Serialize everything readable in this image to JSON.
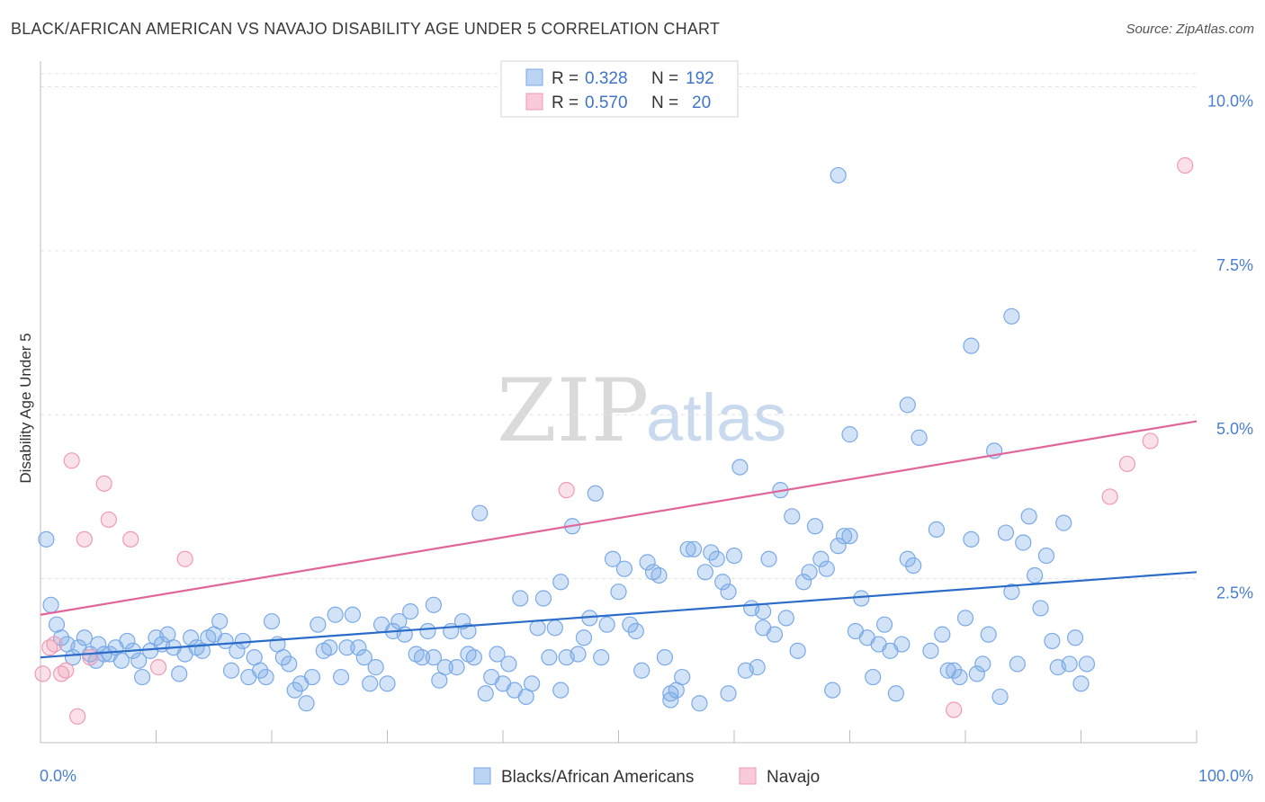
{
  "title": "BLACK/AFRICAN AMERICAN VS NAVAJO DISABILITY AGE UNDER 5 CORRELATION CHART",
  "source": "Source: ZipAtlas.com",
  "watermark": {
    "zip": "ZIP",
    "atlas": "atlas"
  },
  "colors": {
    "blue": "#7aaae6",
    "blue_line": "#2b6cc9",
    "pink": "#f09ab5",
    "pink_line": "#e0669a",
    "tick": "#4a7fcf"
  },
  "legend_top": {
    "rows": [
      {
        "r_label": "R =",
        "r_value": "0.328",
        "n_label": "N =",
        "n_value": "192",
        "color": "blue"
      },
      {
        "r_label": "R =",
        "r_value": "0.570",
        "n_label": "N =",
        "n_value": "20",
        "color": "pink"
      }
    ]
  },
  "legend_bottom": [
    {
      "label": "Blacks/African Americans",
      "color": "blue"
    },
    {
      "label": "Navajo",
      "color": "pink"
    }
  ],
  "chart_data": {
    "type": "scatter",
    "title": "BLACK/AFRICAN AMERICAN VS NAVAJO DISABILITY AGE UNDER 5 CORRELATION CHART",
    "xlabel": "",
    "ylabel": "Disability Age Under 5",
    "xlim": [
      0,
      100
    ],
    "ylim": [
      0,
      10.5
    ],
    "x_tick_labels": [
      "0.0%",
      "100.0%"
    ],
    "y_ticks": [
      2.5,
      5.0,
      7.5,
      10.0
    ],
    "y_tick_labels": [
      "2.5%",
      "5.0%",
      "7.5%",
      "10.0%"
    ],
    "grid": "horizontal dashed",
    "series": [
      {
        "name": "Blacks/African Americans",
        "color": "blue",
        "trend": {
          "x": [
            0,
            100
          ],
          "y": [
            1.3,
            2.6
          ]
        },
        "points": [
          [
            0.5,
            3.1
          ],
          [
            0.9,
            2.1
          ],
          [
            1.4,
            1.8
          ],
          [
            1.8,
            1.6
          ],
          [
            2.3,
            1.5
          ],
          [
            2.8,
            1.3
          ],
          [
            3.3,
            1.45
          ],
          [
            3.8,
            1.6
          ],
          [
            4.3,
            1.35
          ],
          [
            4.8,
            1.25
          ],
          [
            5.0,
            1.5
          ],
          [
            5.5,
            1.35
          ],
          [
            6.0,
            1.35
          ],
          [
            6.5,
            1.45
          ],
          [
            7.0,
            1.25
          ],
          [
            7.5,
            1.55
          ],
          [
            8.0,
            1.4
          ],
          [
            8.5,
            1.25
          ],
          [
            8.8,
            1.0
          ],
          [
            9.5,
            1.4
          ],
          [
            10.0,
            1.6
          ],
          [
            10.5,
            1.5
          ],
          [
            11.0,
            1.65
          ],
          [
            11.5,
            1.45
          ],
          [
            12.0,
            1.05
          ],
          [
            12.5,
            1.35
          ],
          [
            13.0,
            1.6
          ],
          [
            13.5,
            1.45
          ],
          [
            14.0,
            1.4
          ],
          [
            14.5,
            1.6
          ],
          [
            15.0,
            1.65
          ],
          [
            15.5,
            1.85
          ],
          [
            16.0,
            1.55
          ],
          [
            16.5,
            1.1
          ],
          [
            17.0,
            1.4
          ],
          [
            17.5,
            1.55
          ],
          [
            18.0,
            1.0
          ],
          [
            18.5,
            1.3
          ],
          [
            19.0,
            1.1
          ],
          [
            19.5,
            1.0
          ],
          [
            20.0,
            1.85
          ],
          [
            20.5,
            1.5
          ],
          [
            21.0,
            1.3
          ],
          [
            21.5,
            1.2
          ],
          [
            22.0,
            0.8
          ],
          [
            22.5,
            0.9
          ],
          [
            23.0,
            0.6
          ],
          [
            23.5,
            1.0
          ],
          [
            24.0,
            1.8
          ],
          [
            24.5,
            1.4
          ],
          [
            25.0,
            1.45
          ],
          [
            25.5,
            1.95
          ],
          [
            26.0,
            1.0
          ],
          [
            26.5,
            1.45
          ],
          [
            27.0,
            1.95
          ],
          [
            27.5,
            1.45
          ],
          [
            28.0,
            1.3
          ],
          [
            28.5,
            0.9
          ],
          [
            29.0,
            1.15
          ],
          [
            29.5,
            1.8
          ],
          [
            30.0,
            0.9
          ],
          [
            30.5,
            1.7
          ],
          [
            31.0,
            1.85
          ],
          [
            31.5,
            1.65
          ],
          [
            32.0,
            2.0
          ],
          [
            32.5,
            1.35
          ],
          [
            33.0,
            1.3
          ],
          [
            33.5,
            1.7
          ],
          [
            34.0,
            2.1
          ],
          [
            34.5,
            0.95
          ],
          [
            35.0,
            1.15
          ],
          [
            35.5,
            1.7
          ],
          [
            36.0,
            1.15
          ],
          [
            36.5,
            1.85
          ],
          [
            37.0,
            1.35
          ],
          [
            37.5,
            1.3
          ],
          [
            38.0,
            3.5
          ],
          [
            38.5,
            0.75
          ],
          [
            39.0,
            1.0
          ],
          [
            39.5,
            1.35
          ],
          [
            40.0,
            0.9
          ],
          [
            40.5,
            1.2
          ],
          [
            41.0,
            0.8
          ],
          [
            41.5,
            2.2
          ],
          [
            42.0,
            0.7
          ],
          [
            42.5,
            0.9
          ],
          [
            43.0,
            1.75
          ],
          [
            43.5,
            2.2
          ],
          [
            44.0,
            1.3
          ],
          [
            44.5,
            1.75
          ],
          [
            45.0,
            0.8
          ],
          [
            45.5,
            1.3
          ],
          [
            46.0,
            3.3
          ],
          [
            46.5,
            1.35
          ],
          [
            47.0,
            1.6
          ],
          [
            47.5,
            1.9
          ],
          [
            48.0,
            3.8
          ],
          [
            48.5,
            1.3
          ],
          [
            49.0,
            1.8
          ],
          [
            49.5,
            2.8
          ],
          [
            50.0,
            2.3
          ],
          [
            50.5,
            2.65
          ],
          [
            51.0,
            1.8
          ],
          [
            51.5,
            1.7
          ],
          [
            52.0,
            1.1
          ],
          [
            52.5,
            2.75
          ],
          [
            53.0,
            2.6
          ],
          [
            53.5,
            2.55
          ],
          [
            54.0,
            1.3
          ],
          [
            54.5,
            0.65
          ],
          [
            55.0,
            0.8
          ],
          [
            55.5,
            1.0
          ],
          [
            56.0,
            2.95
          ],
          [
            56.5,
            2.95
          ],
          [
            57.0,
            0.6
          ],
          [
            57.5,
            2.6
          ],
          [
            58.0,
            2.9
          ],
          [
            58.5,
            2.8
          ],
          [
            59.0,
            2.45
          ],
          [
            59.5,
            0.75
          ],
          [
            60.0,
            2.85
          ],
          [
            60.5,
            4.2
          ],
          [
            61.0,
            1.1
          ],
          [
            61.5,
            2.05
          ],
          [
            62.0,
            1.15
          ],
          [
            62.5,
            1.75
          ],
          [
            63.0,
            2.8
          ],
          [
            63.5,
            1.65
          ],
          [
            64.0,
            3.85
          ],
          [
            64.5,
            1.9
          ],
          [
            65.0,
            3.45
          ],
          [
            65.5,
            1.4
          ],
          [
            66.0,
            2.45
          ],
          [
            66.5,
            2.6
          ],
          [
            67.0,
            3.3
          ],
          [
            67.5,
            2.8
          ],
          [
            68.0,
            2.65
          ],
          [
            68.5,
            0.8
          ],
          [
            69.0,
            3.0
          ],
          [
            69.5,
            3.15
          ],
          [
            70.0,
            3.15
          ],
          [
            70.5,
            1.7
          ],
          [
            71.0,
            2.2
          ],
          [
            71.5,
            1.6
          ],
          [
            72.0,
            1.0
          ],
          [
            72.5,
            1.5
          ],
          [
            73.0,
            1.8
          ],
          [
            73.5,
            1.4
          ],
          [
            74.0,
            0.75
          ],
          [
            74.5,
            1.5
          ],
          [
            75.0,
            2.8
          ],
          [
            75.5,
            2.7
          ],
          [
            76.0,
            4.65
          ],
          [
            77.0,
            1.4
          ],
          [
            77.5,
            3.25
          ],
          [
            78.0,
            1.65
          ],
          [
            78.5,
            1.1
          ],
          [
            79.0,
            1.1
          ],
          [
            79.5,
            1.0
          ],
          [
            80.0,
            1.9
          ],
          [
            80.5,
            3.1
          ],
          [
            81.0,
            1.05
          ],
          [
            81.5,
            1.2
          ],
          [
            82.0,
            1.65
          ],
          [
            82.5,
            4.45
          ],
          [
            83.0,
            0.7
          ],
          [
            83.5,
            3.2
          ],
          [
            84.0,
            2.3
          ],
          [
            84.5,
            1.2
          ],
          [
            85.0,
            3.05
          ],
          [
            85.5,
            3.45
          ],
          [
            86.0,
            2.55
          ],
          [
            86.5,
            2.05
          ],
          [
            87.0,
            2.85
          ],
          [
            87.5,
            1.55
          ],
          [
            88.0,
            1.15
          ],
          [
            88.5,
            3.35
          ],
          [
            89.0,
            1.2
          ],
          [
            89.5,
            1.6
          ],
          [
            90.0,
            0.9
          ],
          [
            90.5,
            1.2
          ],
          [
            69.0,
            8.65
          ],
          [
            84.0,
            6.5
          ],
          [
            80.5,
            6.05
          ],
          [
            75.0,
            5.15
          ],
          [
            70.0,
            4.7
          ],
          [
            45.0,
            2.45
          ],
          [
            37.0,
            1.7
          ],
          [
            54.5,
            0.75
          ],
          [
            59.5,
            2.3
          ],
          [
            62.5,
            2.0
          ],
          [
            34.0,
            1.3
          ]
        ]
      },
      {
        "name": "Navajo",
        "color": "pink",
        "trend": {
          "x": [
            0,
            100
          ],
          "y": [
            1.95,
            4.9
          ]
        },
        "points": [
          [
            0.2,
            1.05
          ],
          [
            0.8,
            1.45
          ],
          [
            1.2,
            1.5
          ],
          [
            1.8,
            1.05
          ],
          [
            2.2,
            1.1
          ],
          [
            2.7,
            4.3
          ],
          [
            3.2,
            0.4
          ],
          [
            3.8,
            3.1
          ],
          [
            4.3,
            1.3
          ],
          [
            5.5,
            3.95
          ],
          [
            5.9,
            3.4
          ],
          [
            7.8,
            3.1
          ],
          [
            10.2,
            1.15
          ],
          [
            12.5,
            2.8
          ],
          [
            45.5,
            3.85
          ],
          [
            79.0,
            0.5
          ],
          [
            92.5,
            3.75
          ],
          [
            94.0,
            4.25
          ],
          [
            96.0,
            4.6
          ],
          [
            99.0,
            8.8
          ]
        ]
      }
    ]
  }
}
